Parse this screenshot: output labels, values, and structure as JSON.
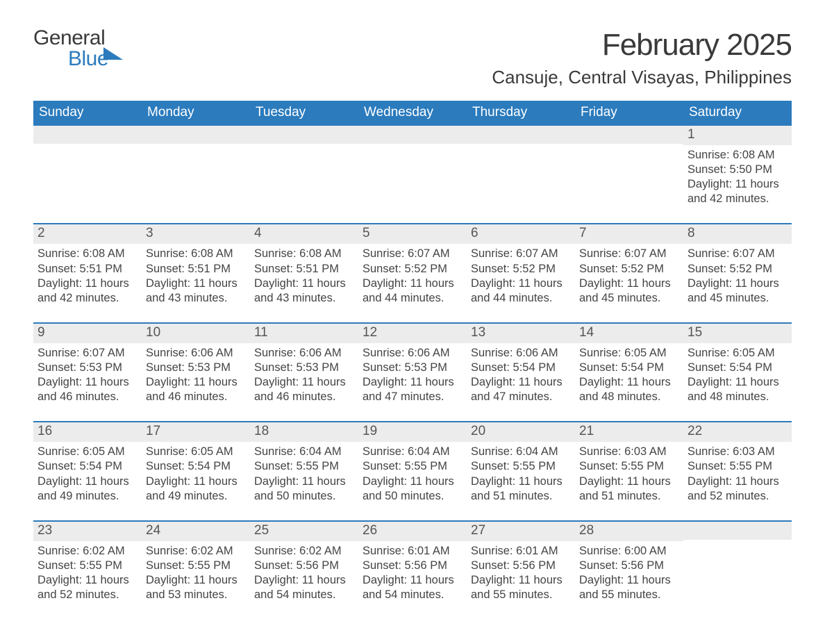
{
  "logo": {
    "word1": "General",
    "word2": "Blue"
  },
  "title": "February 2025",
  "location": "Cansuje, Central Visayas, Philippines",
  "colors": {
    "accent": "#2b7bbd",
    "text": "#333333",
    "text_muted": "#444444",
    "row_header_bg": "#ececec",
    "page_bg": "#ffffff"
  },
  "weekdays": [
    "Sunday",
    "Monday",
    "Tuesday",
    "Wednesday",
    "Thursday",
    "Friday",
    "Saturday"
  ],
  "labels": {
    "sunrise": "Sunrise:",
    "sunset": "Sunset:",
    "daylight": "Daylight:"
  },
  "weeks": [
    [
      null,
      null,
      null,
      null,
      null,
      null,
      {
        "n": "1",
        "sr": "6:08 AM",
        "ss": "5:50 PM",
        "dl": "11 hours and 42 minutes."
      }
    ],
    [
      {
        "n": "2",
        "sr": "6:08 AM",
        "ss": "5:51 PM",
        "dl": "11 hours and 42 minutes."
      },
      {
        "n": "3",
        "sr": "6:08 AM",
        "ss": "5:51 PM",
        "dl": "11 hours and 43 minutes."
      },
      {
        "n": "4",
        "sr": "6:08 AM",
        "ss": "5:51 PM",
        "dl": "11 hours and 43 minutes."
      },
      {
        "n": "5",
        "sr": "6:07 AM",
        "ss": "5:52 PM",
        "dl": "11 hours and 44 minutes."
      },
      {
        "n": "6",
        "sr": "6:07 AM",
        "ss": "5:52 PM",
        "dl": "11 hours and 44 minutes."
      },
      {
        "n": "7",
        "sr": "6:07 AM",
        "ss": "5:52 PM",
        "dl": "11 hours and 45 minutes."
      },
      {
        "n": "8",
        "sr": "6:07 AM",
        "ss": "5:52 PM",
        "dl": "11 hours and 45 minutes."
      }
    ],
    [
      {
        "n": "9",
        "sr": "6:07 AM",
        "ss": "5:53 PM",
        "dl": "11 hours and 46 minutes."
      },
      {
        "n": "10",
        "sr": "6:06 AM",
        "ss": "5:53 PM",
        "dl": "11 hours and 46 minutes."
      },
      {
        "n": "11",
        "sr": "6:06 AM",
        "ss": "5:53 PM",
        "dl": "11 hours and 46 minutes."
      },
      {
        "n": "12",
        "sr": "6:06 AM",
        "ss": "5:53 PM",
        "dl": "11 hours and 47 minutes."
      },
      {
        "n": "13",
        "sr": "6:06 AM",
        "ss": "5:54 PM",
        "dl": "11 hours and 47 minutes."
      },
      {
        "n": "14",
        "sr": "6:05 AM",
        "ss": "5:54 PM",
        "dl": "11 hours and 48 minutes."
      },
      {
        "n": "15",
        "sr": "6:05 AM",
        "ss": "5:54 PM",
        "dl": "11 hours and 48 minutes."
      }
    ],
    [
      {
        "n": "16",
        "sr": "6:05 AM",
        "ss": "5:54 PM",
        "dl": "11 hours and 49 minutes."
      },
      {
        "n": "17",
        "sr": "6:05 AM",
        "ss": "5:54 PM",
        "dl": "11 hours and 49 minutes."
      },
      {
        "n": "18",
        "sr": "6:04 AM",
        "ss": "5:55 PM",
        "dl": "11 hours and 50 minutes."
      },
      {
        "n": "19",
        "sr": "6:04 AM",
        "ss": "5:55 PM",
        "dl": "11 hours and 50 minutes."
      },
      {
        "n": "20",
        "sr": "6:04 AM",
        "ss": "5:55 PM",
        "dl": "11 hours and 51 minutes."
      },
      {
        "n": "21",
        "sr": "6:03 AM",
        "ss": "5:55 PM",
        "dl": "11 hours and 51 minutes."
      },
      {
        "n": "22",
        "sr": "6:03 AM",
        "ss": "5:55 PM",
        "dl": "11 hours and 52 minutes."
      }
    ],
    [
      {
        "n": "23",
        "sr": "6:02 AM",
        "ss": "5:55 PM",
        "dl": "11 hours and 52 minutes."
      },
      {
        "n": "24",
        "sr": "6:02 AM",
        "ss": "5:55 PM",
        "dl": "11 hours and 53 minutes."
      },
      {
        "n": "25",
        "sr": "6:02 AM",
        "ss": "5:56 PM",
        "dl": "11 hours and 54 minutes."
      },
      {
        "n": "26",
        "sr": "6:01 AM",
        "ss": "5:56 PM",
        "dl": "11 hours and 54 minutes."
      },
      {
        "n": "27",
        "sr": "6:01 AM",
        "ss": "5:56 PM",
        "dl": "11 hours and 55 minutes."
      },
      {
        "n": "28",
        "sr": "6:00 AM",
        "ss": "5:56 PM",
        "dl": "11 hours and 55 minutes."
      },
      null
    ]
  ]
}
